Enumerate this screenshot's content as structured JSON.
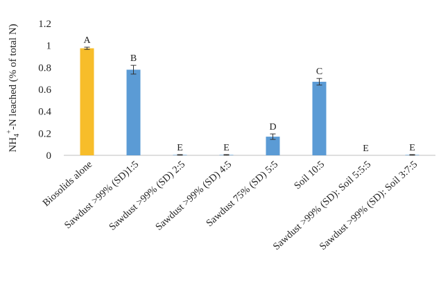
{
  "chart_data": {
    "type": "bar",
    "ylabel_parts": [
      "NH",
      "4",
      "+",
      "-N  leached (% of total N)"
    ],
    "ylim": [
      0,
      1.2
    ],
    "yticks": [
      "0",
      "0.2",
      "0.4",
      "0.6",
      "0.8",
      "1",
      "1.2"
    ],
    "ytick_values": [
      0,
      0.2,
      0.4,
      0.6,
      0.8,
      1.0,
      1.2
    ],
    "categories": [
      "Biosolids alone",
      "Sawdust >99% (SD)1:5",
      "Sawdust >99% (SD) 2:5",
      "Sawdust >99% (SD) 4:5",
      "Sawdust 75% (SD) 5:5",
      "Soil 10:5",
      "Sawdust >99% (SD): Soil 5:5:5",
      "Sawdust >99% (SD): Soil 3:7:5"
    ],
    "values": [
      0.975,
      0.78,
      0.004,
      0.004,
      0.17,
      0.67,
      0.0,
      0.004
    ],
    "errors": [
      0.01,
      0.04,
      0.003,
      0.003,
      0.025,
      0.03,
      0.0,
      0.003
    ],
    "letters": [
      "A",
      "B",
      "E",
      "E",
      "D",
      "C",
      "E",
      "E"
    ],
    "colors": [
      "#F7BD2A",
      "#5B9BD5",
      "#5B9BD5",
      "#5B9BD5",
      "#5B9BD5",
      "#5B9BD5",
      "#5B9BD5",
      "#5B9BD5"
    ],
    "grid": false
  }
}
